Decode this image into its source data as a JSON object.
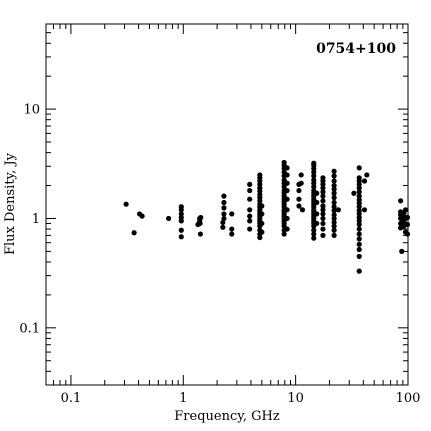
{
  "chart_data": {
    "type": "scatter",
    "title": "0754+100",
    "xlabel": "Frequency, GHz",
    "ylabel": "Flux Density, Jy",
    "xscale": "log",
    "yscale": "log",
    "xlim": [
      0.06,
      100
    ],
    "ylim": [
      0.03,
      60
    ],
    "xticks": [
      {
        "value": 0.1,
        "label": "0.1"
      },
      {
        "value": 1,
        "label": "1"
      },
      {
        "value": 10,
        "label": "10"
      },
      {
        "value": 100,
        "label": "100"
      }
    ],
    "yticks": [
      {
        "value": 0.1,
        "label": "0.1"
      },
      {
        "value": 1,
        "label": "1"
      },
      {
        "value": 10,
        "label": "10"
      }
    ],
    "grid": false,
    "legend": "none",
    "marker_color": "#000000",
    "points": [
      [
        0.31,
        1.35
      ],
      [
        0.365,
        0.74
      ],
      [
        0.408,
        1.1
      ],
      [
        0.43,
        1.05
      ],
      [
        0.74,
        1.0
      ],
      [
        0.96,
        0.68
      ],
      [
        0.96,
        0.78
      ],
      [
        0.96,
        0.95
      ],
      [
        0.96,
        1.02
      ],
      [
        0.96,
        1.1
      ],
      [
        0.96,
        1.2
      ],
      [
        0.96,
        1.28
      ],
      [
        1.35,
        0.88
      ],
      [
        1.4,
        0.95
      ],
      [
        1.4,
        1.0
      ],
      [
        1.42,
        0.72
      ],
      [
        1.41,
        0.9
      ],
      [
        1.43,
        1.02
      ],
      [
        2.25,
        0.83
      ],
      [
        2.25,
        0.92
      ],
      [
        2.3,
        1.0
      ],
      [
        2.3,
        1.1
      ],
      [
        2.3,
        1.25
      ],
      [
        2.3,
        1.4
      ],
      [
        2.3,
        1.6
      ],
      [
        2.7,
        0.72
      ],
      [
        2.7,
        0.8
      ],
      [
        2.7,
        1.1
      ],
      [
        3.9,
        0.8
      ],
      [
        3.9,
        0.95
      ],
      [
        3.9,
        1.05
      ],
      [
        3.9,
        1.2
      ],
      [
        3.9,
        1.5
      ],
      [
        3.9,
        1.8
      ],
      [
        3.9,
        2.05
      ],
      [
        4.8,
        0.67
      ],
      [
        4.8,
        0.72
      ],
      [
        4.8,
        0.78
      ],
      [
        4.8,
        0.85
      ],
      [
        4.8,
        0.9
      ],
      [
        4.8,
        0.95
      ],
      [
        4.8,
        1.0
      ],
      [
        4.8,
        1.05
      ],
      [
        4.8,
        1.1
      ],
      [
        4.8,
        1.15
      ],
      [
        4.8,
        1.2
      ],
      [
        4.8,
        1.28
      ],
      [
        4.8,
        1.35
      ],
      [
        4.8,
        1.45
      ],
      [
        4.8,
        1.55
      ],
      [
        4.8,
        1.65
      ],
      [
        4.8,
        1.78
      ],
      [
        4.8,
        1.9
      ],
      [
        4.8,
        2.05
      ],
      [
        4.8,
        2.2
      ],
      [
        4.8,
        2.35
      ],
      [
        4.8,
        2.5
      ],
      [
        5.0,
        0.75
      ],
      [
        5.0,
        0.9
      ],
      [
        5.0,
        1.1
      ],
      [
        5.0,
        1.3
      ],
      [
        7.9,
        0.72
      ],
      [
        7.9,
        0.78
      ],
      [
        7.9,
        0.85
      ],
      [
        7.9,
        0.9
      ],
      [
        7.9,
        0.95
      ],
      [
        7.9,
        1.0
      ],
      [
        7.9,
        1.05
      ],
      [
        7.9,
        1.1
      ],
      [
        7.9,
        1.15
      ],
      [
        7.9,
        1.2
      ],
      [
        7.9,
        1.28
      ],
      [
        7.9,
        1.35
      ],
      [
        7.9,
        1.42
      ],
      [
        7.9,
        1.5
      ],
      [
        7.9,
        1.6
      ],
      [
        7.9,
        1.7
      ],
      [
        7.9,
        1.8
      ],
      [
        7.9,
        1.95
      ],
      [
        7.9,
        2.1
      ],
      [
        7.9,
        2.25
      ],
      [
        7.9,
        2.45
      ],
      [
        7.9,
        2.65
      ],
      [
        7.9,
        2.85
      ],
      [
        7.9,
        3.05
      ],
      [
        7.9,
        3.25
      ],
      [
        8.4,
        0.8
      ],
      [
        8.4,
        1.0
      ],
      [
        8.4,
        1.2
      ],
      [
        8.4,
        1.5
      ],
      [
        8.4,
        1.8
      ],
      [
        8.4,
        2.1
      ],
      [
        8.4,
        2.5
      ],
      [
        8.4,
        2.9
      ],
      [
        10.7,
        1.3
      ],
      [
        10.7,
        1.5
      ],
      [
        10.7,
        1.8
      ],
      [
        10.7,
        2.05
      ],
      [
        11.2,
        2.1
      ],
      [
        11.2,
        2.5
      ],
      [
        11.5,
        1.2
      ],
      [
        14.5,
        0.66
      ],
      [
        14.5,
        0.72
      ],
      [
        14.5,
        0.78
      ],
      [
        14.5,
        0.85
      ],
      [
        14.5,
        0.9
      ],
      [
        14.5,
        0.95
      ],
      [
        14.5,
        1.0
      ],
      [
        14.5,
        1.05
      ],
      [
        14.5,
        1.1
      ],
      [
        14.5,
        1.15
      ],
      [
        14.5,
        1.2
      ],
      [
        14.5,
        1.28
      ],
      [
        14.5,
        1.35
      ],
      [
        14.5,
        1.42
      ],
      [
        14.5,
        1.5
      ],
      [
        14.5,
        1.6
      ],
      [
        14.5,
        1.7
      ],
      [
        14.5,
        1.8
      ],
      [
        14.5,
        1.95
      ],
      [
        14.5,
        2.1
      ],
      [
        14.5,
        2.25
      ],
      [
        14.5,
        2.45
      ],
      [
        14.5,
        2.65
      ],
      [
        14.5,
        2.85
      ],
      [
        14.5,
        3.05
      ],
      [
        14.5,
        3.2
      ],
      [
        15.4,
        0.9
      ],
      [
        15.4,
        1.1
      ],
      [
        15.4,
        1.4
      ],
      [
        15.4,
        1.7
      ],
      [
        17.5,
        0.7
      ],
      [
        17.5,
        0.8
      ],
      [
        17.5,
        0.9
      ],
      [
        17.5,
        1.0
      ],
      [
        17.5,
        1.1
      ],
      [
        17.5,
        1.2
      ],
      [
        17.5,
        1.3
      ],
      [
        17.5,
        1.45
      ],
      [
        17.5,
        1.6
      ],
      [
        17.5,
        1.75
      ],
      [
        17.5,
        1.9
      ],
      [
        17.5,
        2.05
      ],
      [
        17.5,
        2.2
      ],
      [
        17.5,
        2.35
      ],
      [
        22.0,
        0.7
      ],
      [
        22.0,
        0.78
      ],
      [
        22.0,
        0.85
      ],
      [
        22.0,
        0.92
      ],
      [
        22.0,
        1.0
      ],
      [
        22.0,
        1.08
      ],
      [
        22.0,
        1.18
      ],
      [
        22.0,
        1.28
      ],
      [
        22.0,
        1.4
      ],
      [
        22.0,
        1.55
      ],
      [
        22.0,
        1.7
      ],
      [
        22.0,
        1.85
      ],
      [
        22.0,
        2.0
      ],
      [
        22.0,
        2.2
      ],
      [
        22.0,
        2.45
      ],
      [
        22.0,
        2.7
      ],
      [
        24.0,
        1.2
      ],
      [
        33.0,
        1.7
      ],
      [
        36.8,
        0.33
      ],
      [
        36.8,
        0.45
      ],
      [
        36.8,
        0.52
      ],
      [
        36.8,
        0.58
      ],
      [
        36.8,
        0.65
      ],
      [
        36.8,
        0.72
      ],
      [
        36.8,
        0.8
      ],
      [
        36.8,
        0.88
      ],
      [
        36.8,
        0.95
      ],
      [
        36.8,
        1.02
      ],
      [
        36.8,
        1.1
      ],
      [
        36.8,
        1.18
      ],
      [
        36.8,
        1.28
      ],
      [
        36.8,
        1.38
      ],
      [
        36.8,
        1.48
      ],
      [
        36.8,
        1.6
      ],
      [
        36.8,
        1.75
      ],
      [
        36.8,
        1.9
      ],
      [
        36.8,
        2.05
      ],
      [
        36.8,
        2.2
      ],
      [
        36.8,
        2.35
      ],
      [
        36.8,
        2.9
      ],
      [
        41.0,
        1.2
      ],
      [
        41.0,
        2.2
      ],
      [
        43.0,
        2.5
      ],
      [
        86.0,
        0.82
      ],
      [
        86.0,
        0.9
      ],
      [
        86.0,
        1.0
      ],
      [
        86.0,
        1.08
      ],
      [
        86.0,
        1.15
      ],
      [
        86.0,
        1.45
      ],
      [
        88.0,
        0.5
      ],
      [
        92.0,
        0.85
      ],
      [
        92.0,
        0.95
      ],
      [
        92.0,
        1.05
      ],
      [
        92.0,
        1.12
      ],
      [
        95.0,
        0.75
      ],
      [
        95.0,
        1.0
      ],
      [
        95.0,
        1.2
      ],
      [
        99.0,
        0.72
      ],
      [
        99.0,
        0.88
      ],
      [
        99.0,
        1.02
      ]
    ]
  }
}
